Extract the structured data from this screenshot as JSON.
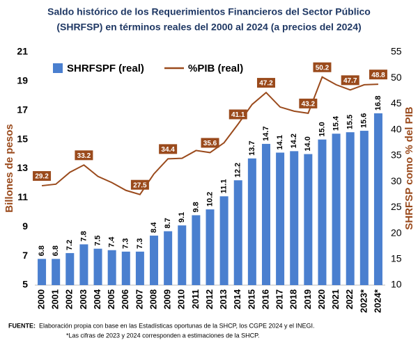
{
  "chart_data": {
    "type": "bar",
    "title": [
      "Saldo histórico de los Requerimientos Financieros del Sector Público",
      "(SHRFSP) en términos reales del 2000 al 2024 (a precios del 2024)"
    ],
    "ylabel": "Billones de pesos",
    "y2label": "SHRFSP como % del PIB",
    "categories": [
      "2000",
      "2001",
      "2002",
      "2003",
      "2004",
      "2005",
      "2006",
      "2007",
      "2008",
      "2009",
      "2010",
      "2011",
      "2012",
      "2013",
      "2014",
      "2015",
      "2016",
      "2017",
      "2018",
      "2019",
      "2020",
      "2021",
      "2022",
      "2023*",
      "2024*"
    ],
    "series": [
      {
        "name": "SHRFSPF (real)",
        "type": "bar",
        "axis": "y",
        "color": "#4a7fcf",
        "values": [
          6.8,
          6.8,
          7.2,
          7.8,
          7.5,
          7.4,
          7.3,
          7.3,
          8.4,
          8.7,
          9.1,
          9.8,
          10.2,
          11.1,
          12.2,
          13.7,
          14.7,
          14.1,
          14.2,
          14.0,
          15.0,
          15.4,
          15.5,
          15.6,
          16.8
        ],
        "value_labels": [
          "6.8",
          "6.8",
          "7.2",
          "7.8",
          "7.5",
          "7.4",
          "7.3",
          "7.3",
          "8.4",
          "8.7",
          "9.1",
          "9.8",
          "10.2",
          "11.1",
          "12.2",
          "13.7",
          "14.7",
          "14.1",
          "14.2",
          "14.0",
          "15.0",
          "15.4",
          "15.5",
          "15.6",
          "16.8"
        ]
      },
      {
        "name": "%PIB (real)",
        "type": "line",
        "axis": "y2",
        "color": "#9a4a1c",
        "values": [
          29.2,
          29.5,
          31.8,
          33.2,
          31.0,
          29.8,
          28.3,
          27.5,
          31.5,
          34.4,
          34.5,
          36.0,
          35.6,
          37.5,
          41.1,
          44.9,
          47.2,
          44.4,
          43.6,
          43.2,
          50.2,
          48.7,
          47.7,
          48.7,
          48.8
        ],
        "value_labels": [
          "29.2",
          null,
          null,
          "33.2",
          null,
          null,
          null,
          "27.5",
          null,
          "34.4",
          null,
          null,
          "35.6",
          null,
          "41.1",
          null,
          "47.2",
          null,
          null,
          "43.2",
          "50.2",
          null,
          "47.7",
          null,
          "48.8"
        ]
      }
    ],
    "ylim": [
      5,
      21
    ],
    "yticks": [
      5,
      7,
      9,
      11,
      13,
      15,
      17,
      19,
      21
    ],
    "y2lim": [
      10,
      55
    ],
    "y2ticks": [
      10,
      15,
      20,
      25,
      30,
      35,
      40,
      45,
      50,
      55
    ],
    "grid": false,
    "legend": "top-left",
    "notes": {
      "source_label": "FUENTE:",
      "source_text": "Elaboración propia con base en las Estadísticas oportunas de la SHCP, los CGPE 2024 y el INEGI.",
      "footnote": "*Las cifras de 2023 y 2024 corresponden a estimaciones de la SHCP."
    }
  }
}
